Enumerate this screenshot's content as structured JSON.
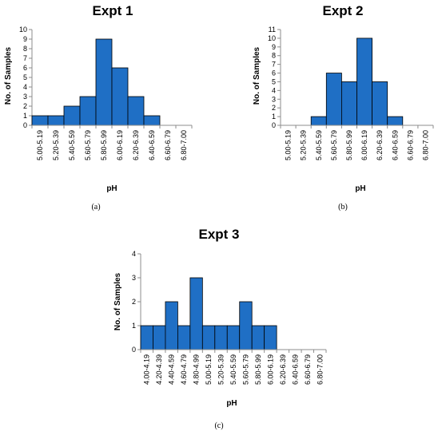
{
  "chart_data": [
    {
      "type": "bar",
      "title": "Expt 1",
      "xlabel": "pH",
      "ylabel": "No. of Samples",
      "caption": "(a)",
      "categories": [
        "5.00-5.19",
        "5.20-5.39",
        "5.40-5.59",
        "5.60-5.79",
        "5.80-5.99",
        "6.00-6.19",
        "6.20-6.39",
        "6.40-6.59",
        "6.60-6.79",
        "6.80-7.00"
      ],
      "values": [
        1,
        1,
        2,
        3,
        9,
        6,
        3,
        1,
        0,
        0
      ],
      "ylim": [
        0,
        10
      ],
      "yticks": [
        0,
        1,
        2,
        3,
        4,
        5,
        6,
        7,
        8,
        9,
        10
      ],
      "bar_color": "#1f6fc5",
      "grid": false,
      "legend": "none"
    },
    {
      "type": "bar",
      "title": "Expt 2",
      "xlabel": "pH",
      "ylabel": "No. of Samples",
      "caption": "(b)",
      "categories": [
        "5.00-5.19",
        "5.20-5.39",
        "5.40-5.59",
        "5.60-5.79",
        "5.80-5.99",
        "6.00-6.19",
        "6.20-6.39",
        "6.40-6.59",
        "6.60-6.79",
        "6.80-7.00"
      ],
      "values": [
        0,
        0,
        1,
        6,
        5,
        10,
        5,
        1,
        0,
        0
      ],
      "ylim": [
        0,
        11
      ],
      "yticks": [
        0,
        1,
        2,
        3,
        4,
        5,
        6,
        7,
        8,
        9,
        10,
        11
      ],
      "bar_color": "#1f6fc5",
      "grid": false,
      "legend": "none"
    },
    {
      "type": "bar",
      "title": "Expt 3",
      "xlabel": "pH",
      "ylabel": "No. of Samples",
      "caption": "(c)",
      "categories": [
        "4.00-4.19",
        "4.20-4.39",
        "4.40-4.59",
        "4.60-4.79",
        "4.80-4.99",
        "5.00-5.19",
        "5.20-5.39",
        "5.40-5.59",
        "5.60-5.79",
        "5.80-5.99",
        "6.00-6.19",
        "6.20-6.39",
        "6.40-6.59",
        "6.60-6.79",
        "6.80-7.00"
      ],
      "values": [
        1,
        1,
        2,
        1,
        3,
        1,
        1,
        1,
        2,
        1,
        1,
        0,
        0,
        0,
        0
      ],
      "ylim": [
        0,
        4
      ],
      "yticks": [
        0,
        1,
        2,
        3,
        4
      ],
      "bar_color": "#1f6fc5",
      "grid": false,
      "legend": "none"
    }
  ]
}
